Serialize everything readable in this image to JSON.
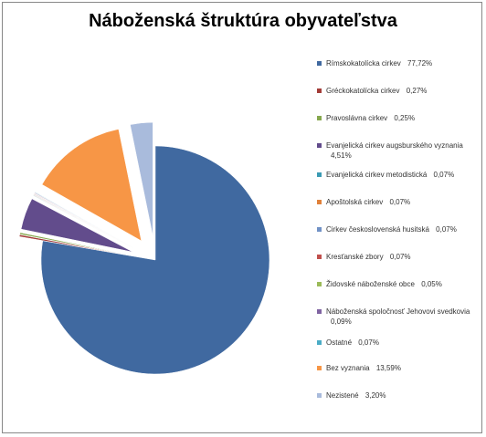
{
  "chart_data": {
    "type": "pie",
    "title": "Náboženská štruktúra obyvateľstva",
    "categories": [
      "Rímskokatolícka cirkev",
      "Gréckokatolícka cirkev",
      "Pravoslávna cirkev",
      "Evanjelická cirkev augsburského vyznania",
      "Evanjelická cirkev metodistická",
      "Apoštolská cirkev",
      "Cirkev československá husitská",
      "Kresťanské zbory",
      "Židovské náboženské obce",
      "Náboženská spoločnosť Jehovovi svedkovia",
      "Ostatné",
      "Bez vyznania",
      "Nezistené"
    ],
    "values": [
      77.72,
      0.27,
      0.25,
      4.51,
      0.07,
      0.07,
      0.07,
      0.07,
      0.05,
      0.09,
      0.07,
      13.59,
      3.2
    ],
    "value_labels": [
      "77,72%",
      "0,27%",
      "0,25%",
      "4,51%",
      "0,07%",
      "0,07%",
      "0,07%",
      "0,07%",
      "0,05%",
      "0,09%",
      "0,07%",
      "13,59%",
      "3,20%"
    ],
    "colors": [
      "#4069a0",
      "#a33c38",
      "#86a84e",
      "#624c8c",
      "#3b9bb4",
      "#e0813a",
      "#7192c6",
      "#c0504d",
      "#9bbb59",
      "#8064a2",
      "#4bacc6",
      "#f79646",
      "#a9bbdc"
    ],
    "legend": "right"
  }
}
